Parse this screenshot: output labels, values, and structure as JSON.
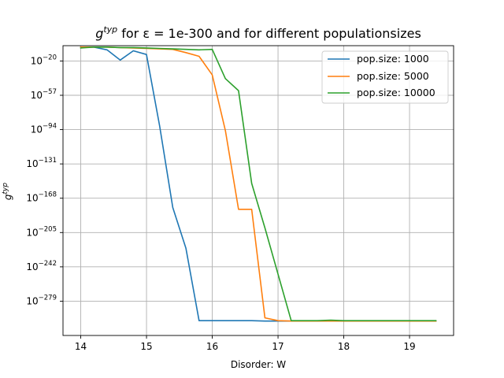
{
  "chart_data": {
    "type": "line",
    "title_parts": [
      "g",
      "typ",
      " for ε = 1e-300 and for different populationsizes"
    ],
    "xlabel": "Disorder: W",
    "ylabel_parts": [
      "g",
      "typ"
    ],
    "xlim": [
      13.73,
      19.67
    ],
    "ylim_exp": [
      -316,
      -3.5
    ],
    "yscale": "log",
    "grid": true,
    "legend_position": "upper right",
    "x_ticks": [
      "14",
      "15",
      "16",
      "17",
      "18",
      "19"
    ],
    "y_ticks": [
      "10",
      "10",
      "10",
      "10",
      "10",
      "10",
      "10",
      "10"
    ],
    "y_tick_exps": [
      "−20",
      "−57",
      "−94",
      "−131",
      "−168",
      "−205",
      "−242",
      "−279"
    ],
    "series": [
      {
        "name": "pop.size: 1000",
        "color": "#1f77b4",
        "x": [
          14.0,
          14.2,
          14.4,
          14.6,
          14.8,
          15.0,
          15.2,
          15.4,
          15.6,
          15.8,
          16.0,
          16.2,
          16.4,
          16.6,
          16.8,
          17.0,
          17.2,
          17.4,
          17.6,
          17.8,
          18.0,
          18.2,
          18.4,
          18.6,
          18.8,
          19.0,
          19.2,
          19.4
        ],
        "y_exp": [
          -5,
          -5,
          -8,
          -19,
          -9,
          -13,
          -90,
          -178,
          -222,
          -300,
          -300,
          -300,
          -300,
          -300,
          -300.5,
          -300.5,
          -300.5,
          -300.5,
          -300.5,
          -300.5,
          -300.5,
          -300.5,
          -300.5,
          -300.5,
          -300.5,
          -300.5,
          -300.5,
          -300.5
        ]
      },
      {
        "name": "pop.size: 5000",
        "color": "#ff7f0e",
        "x": [
          14.0,
          14.2,
          14.4,
          14.6,
          14.8,
          15.0,
          15.2,
          15.4,
          15.6,
          15.8,
          16.0,
          16.2,
          16.4,
          16.6,
          16.8,
          17.0,
          17.2,
          17.4,
          17.6,
          17.8,
          18.0,
          18.2,
          18.4,
          18.6,
          18.8,
          19.0,
          19.2,
          19.4
        ],
        "y_exp": [
          -5,
          -5,
          -5,
          -5.5,
          -6,
          -6.5,
          -7,
          -7.5,
          -11,
          -15,
          -35,
          -95,
          -180,
          -180,
          -297,
          -300,
          -300.5,
          -300.5,
          -300.5,
          -300.5,
          -300.5,
          -300.5,
          -300.5,
          -300.5,
          -300.5,
          -300.5,
          -300.5,
          -300.5
        ]
      },
      {
        "name": "pop.size: 10000",
        "color": "#2ca02c",
        "x": [
          14.0,
          14.2,
          14.4,
          14.6,
          14.8,
          15.0,
          15.2,
          15.4,
          15.6,
          15.8,
          16.0,
          16.2,
          16.4,
          16.6,
          16.8,
          17.0,
          17.2,
          17.4,
          17.6,
          17.8,
          18.0,
          18.2,
          18.4,
          18.6,
          18.8,
          19.0,
          19.2,
          19.4
        ],
        "y_exp": [
          -6,
          -5,
          -5,
          -5.5,
          -5.5,
          -6,
          -6.5,
          -7,
          -7.5,
          -8,
          -7.5,
          -39,
          -52,
          -152,
          -200,
          -250,
          -300,
          -300,
          -300,
          -299.5,
          -300,
          -300,
          -300,
          -300,
          -300,
          -300,
          -300,
          -300
        ]
      }
    ]
  }
}
